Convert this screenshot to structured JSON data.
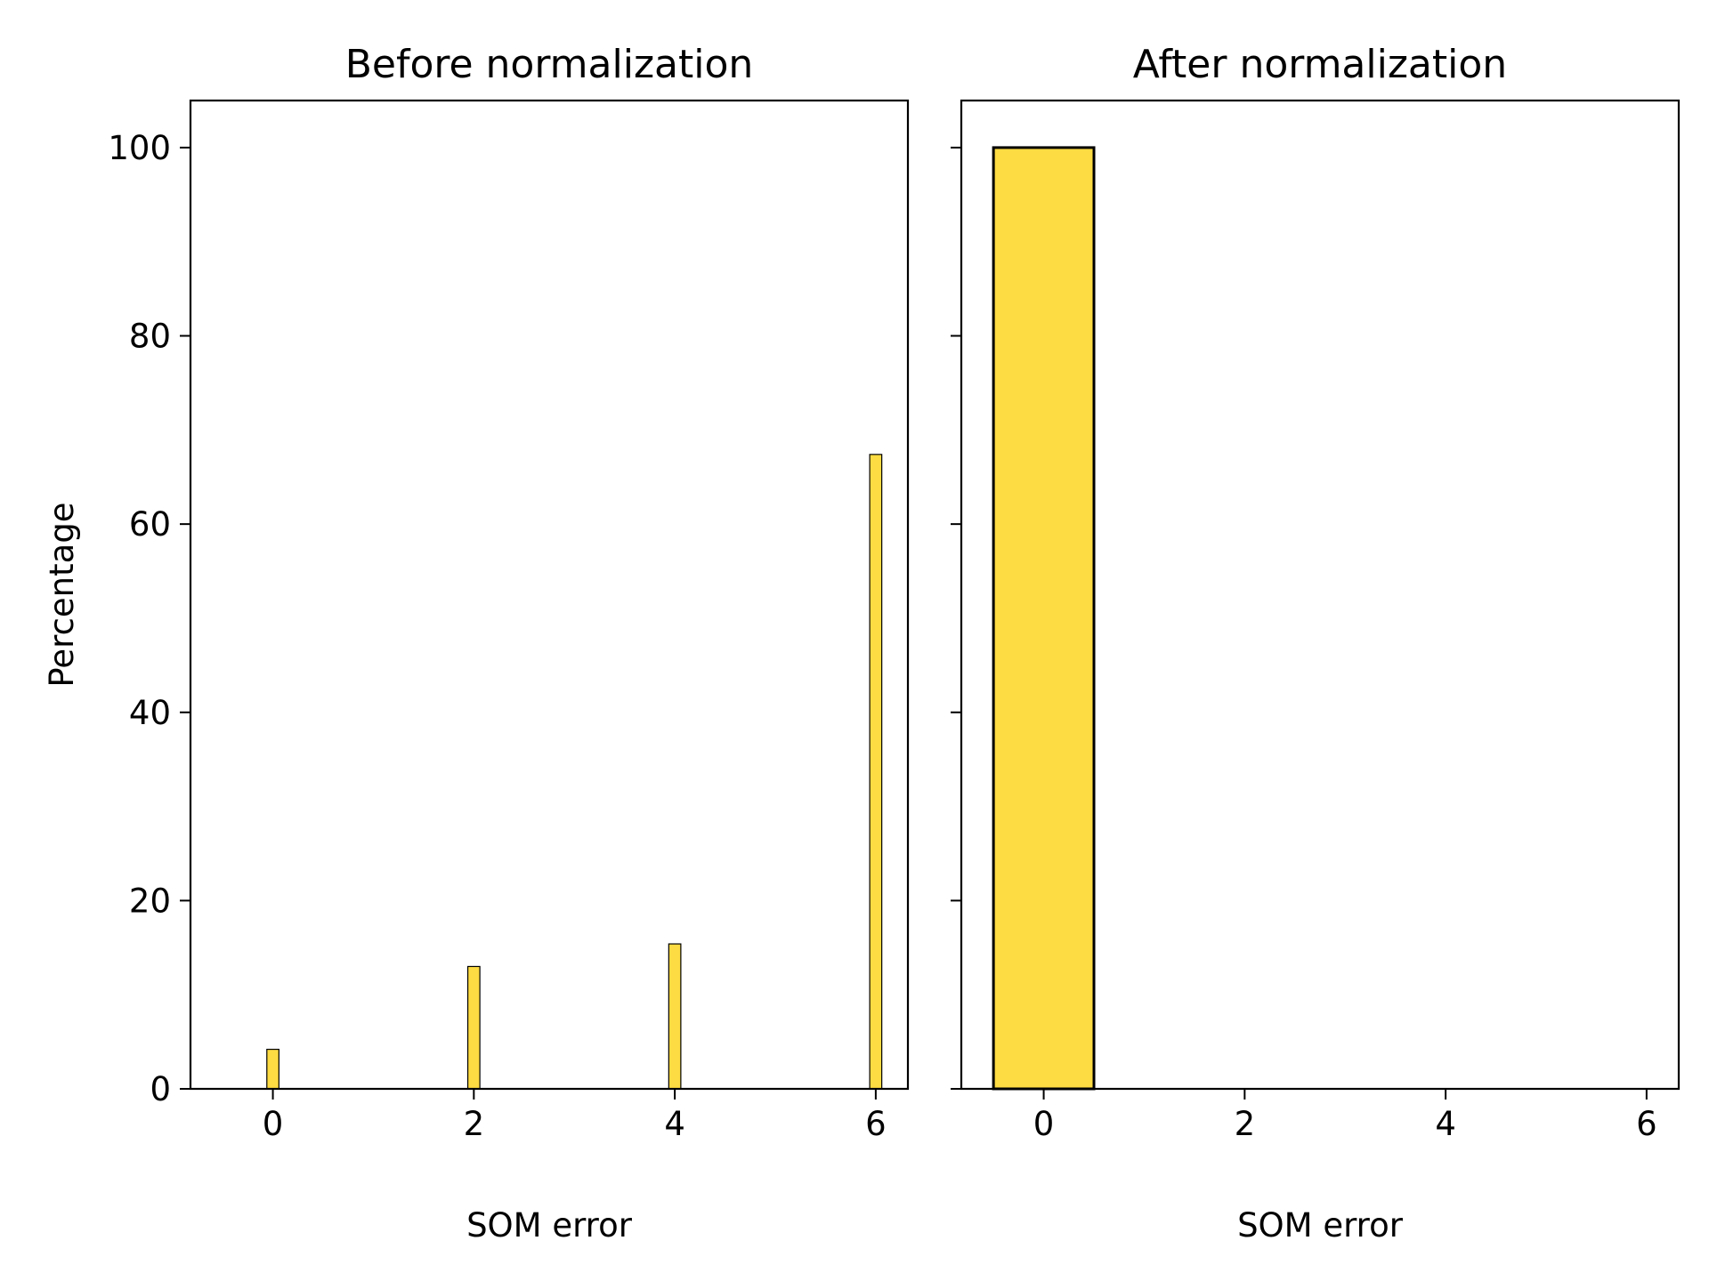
{
  "chart_data": [
    {
      "type": "bar",
      "title": "Before normalization",
      "xlabel": "SOM error",
      "ylabel": "Percentage",
      "xlim": [
        -0.82,
        6.32
      ],
      "ylim": [
        0,
        105
      ],
      "xticks": [
        0,
        2,
        4,
        6
      ],
      "yticks": [
        0,
        20,
        40,
        60,
        80,
        100
      ],
      "bar_width": 0.12,
      "bars": [
        {
          "x": 0,
          "value": 4.2
        },
        {
          "x": 2,
          "value": 13.0
        },
        {
          "x": 4,
          "value": 15.4
        },
        {
          "x": 6,
          "value": 67.4
        }
      ],
      "bar_color": "#fddb42",
      "edge_color": "#000000",
      "grid": false,
      "legend": "none"
    },
    {
      "type": "bar",
      "title": "After normalization",
      "xlabel": "SOM error",
      "ylabel": "",
      "xlim": [
        -0.82,
        6.32
      ],
      "ylim": [
        0,
        105
      ],
      "xticks": [
        0,
        2,
        4,
        6
      ],
      "yticks": [
        0,
        20,
        40,
        60,
        80,
        100
      ],
      "show_ytick_labels": false,
      "bar_width": 1.0,
      "bars": [
        {
          "x": 0,
          "value": 100
        }
      ],
      "bar_color": "#fddb42",
      "edge_color": "#000000",
      "grid": false,
      "legend": "none"
    }
  ]
}
